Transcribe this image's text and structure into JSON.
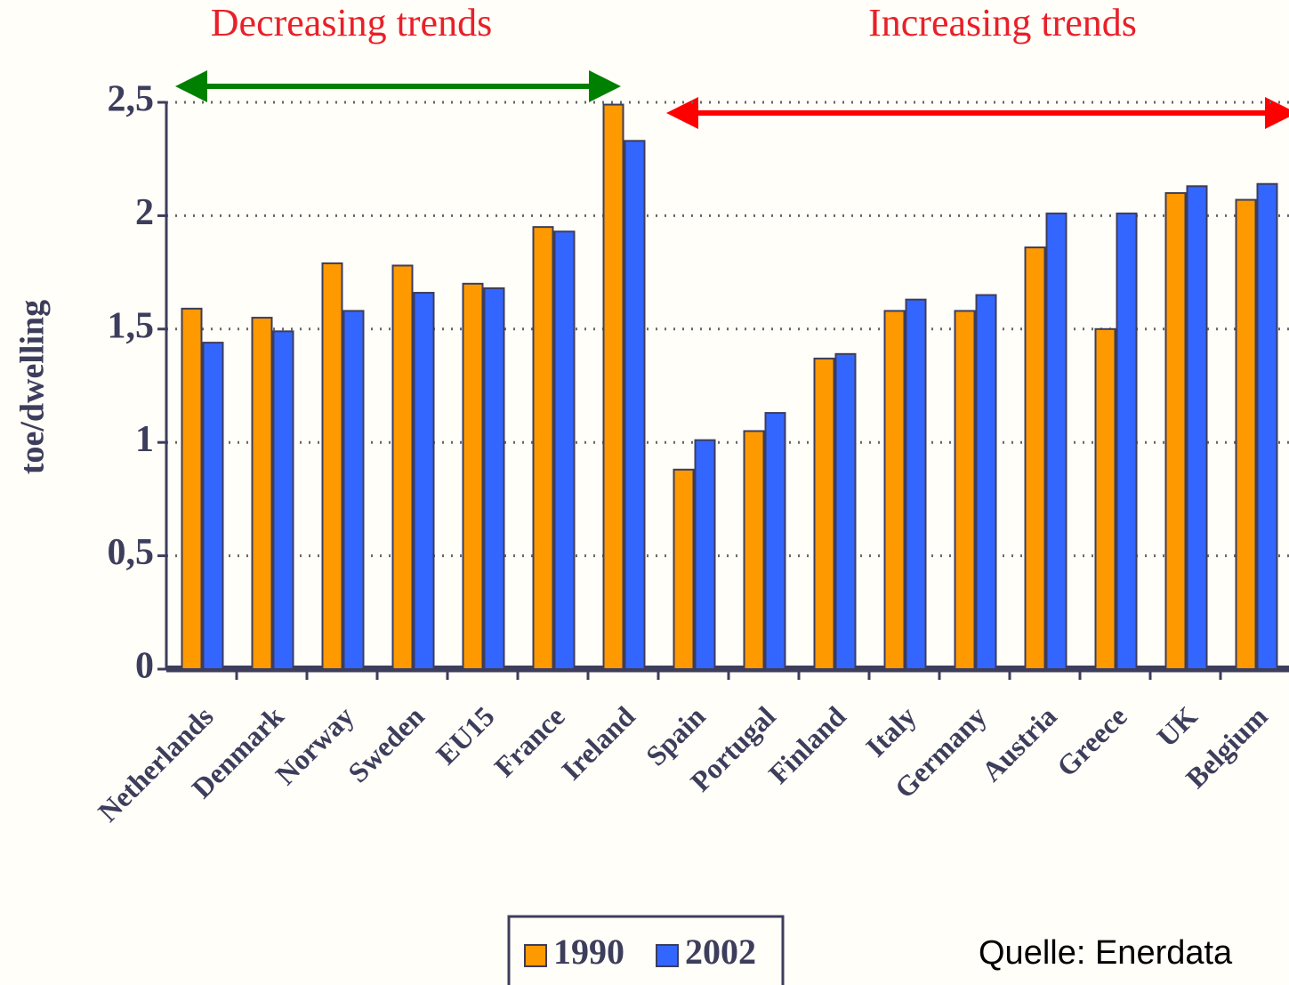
{
  "chart_data": {
    "type": "bar",
    "y_label": "toe/dwelling",
    "annotations": [
      "Decreasing trends",
      "Increasing trends"
    ],
    "source": "Quelle: Enerdata",
    "categories": [
      "Netherlands",
      "Denmark",
      "Norway",
      "Sweden",
      "EU15",
      "France",
      "Ireland",
      "Spain",
      "Portugal",
      "Finland",
      "Italy",
      "Germany",
      "Austria",
      "Greece",
      "UK",
      "Belgium"
    ],
    "series": [
      {
        "name": "1990",
        "color": "#ff9900",
        "values": [
          1.59,
          1.55,
          1.79,
          1.78,
          1.7,
          1.95,
          2.49,
          0.88,
          1.05,
          1.37,
          1.58,
          1.58,
          1.86,
          1.5,
          2.1,
          2.07
        ]
      },
      {
        "name": "2002",
        "color": "#3366ff",
        "values": [
          1.44,
          1.49,
          1.58,
          1.66,
          1.68,
          1.93,
          2.33,
          1.01,
          1.13,
          1.39,
          1.63,
          1.65,
          2.01,
          2.01,
          2.13,
          2.14
        ]
      }
    ],
    "ylim": [
      0,
      2.5
    ],
    "yticks": [
      0,
      {
        "value": 0.5,
        "label": "0,5"
      },
      1,
      {
        "value": 1.5,
        "label": "1,5"
      },
      2,
      {
        "value": 2.5,
        "label": "2,5"
      }
    ],
    "grid": true
  }
}
